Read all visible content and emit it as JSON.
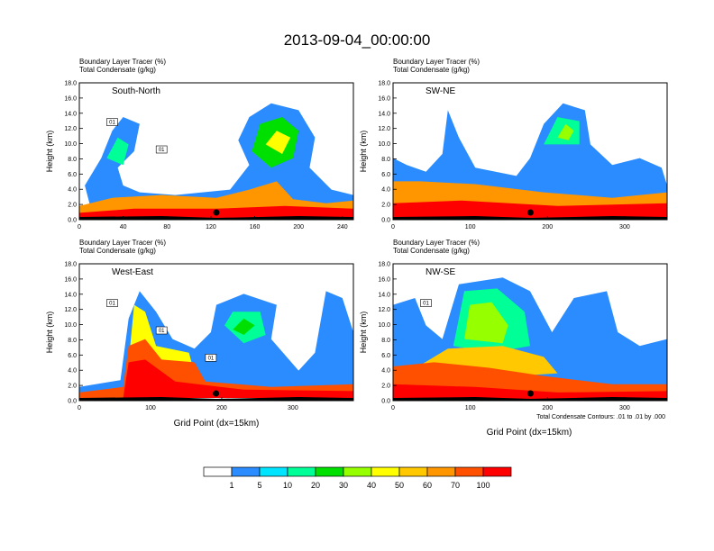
{
  "title": "2013-09-04_00:00:00",
  "panel_header_lines": [
    "Boundary Layer Tracer    (%)",
    "Total Condensate    (g/kg)"
  ],
  "y_axis_label": "Height (km)",
  "x_axis_label": "Grid Point (dx=15km)",
  "contour_note": "Total Condensate Contours: .01 to .01 by .000",
  "colorbar": {
    "colors": [
      "#ffffff",
      "#2a8cff",
      "#00e5ff",
      "#00ff96",
      "#00e000",
      "#96ff00",
      "#ffff00",
      "#ffc800",
      "#ff9600",
      "#ff5000",
      "#ff0000"
    ],
    "labels": [
      "1",
      "5",
      "10",
      "20",
      "30",
      "40",
      "50",
      "60",
      "70",
      "100"
    ]
  },
  "chart_data": [
    {
      "type": "heatmap",
      "name": "South-North",
      "ylabel": "Height (km)",
      "yticks": [
        "0.0",
        "2.0",
        "4.0",
        "6.0",
        "8.0",
        "10.0",
        "12.0",
        "14.0",
        "16.0",
        "18.0"
      ],
      "ylim": [
        0,
        18
      ],
      "xticks": [
        0,
        40,
        80,
        120,
        160,
        200,
        240
      ],
      "xlim": [
        0,
        250
      ],
      "contour_labels": [
        "01",
        "01"
      ],
      "marker_x": 125
    },
    {
      "type": "heatmap",
      "name": "SW-NE",
      "ylabel": "Height (km)",
      "yticks": [
        "0.0",
        "2.0",
        "4.0",
        "6.0",
        "8.0",
        "10.0",
        "12.0",
        "14.0",
        "16.0",
        "18.0"
      ],
      "ylim": [
        0,
        18
      ],
      "xticks": [
        0,
        100,
        200,
        300
      ],
      "xlim": [
        0,
        355
      ],
      "contour_labels": [],
      "marker_x": 178
    },
    {
      "type": "heatmap",
      "name": "West-East",
      "ylabel": "Height (km)",
      "yticks": [
        "0.0",
        "2.0",
        "4.0",
        "6.0",
        "8.0",
        "10.0",
        "12.0",
        "14.0",
        "16.0",
        "18.0"
      ],
      "ylim": [
        0,
        18
      ],
      "xticks": [
        0,
        100,
        200,
        300
      ],
      "xlim": [
        0,
        385
      ],
      "contour_labels": [
        "01",
        "01",
        "01"
      ],
      "marker_x": 192
    },
    {
      "type": "heatmap",
      "name": "NW-SE",
      "ylabel": "Height (km)",
      "yticks": [
        "0.0",
        "2.0",
        "4.0",
        "6.0",
        "8.0",
        "10.0",
        "12.0",
        "14.0",
        "16.0",
        "18.0"
      ],
      "ylim": [
        0,
        18
      ],
      "xticks": [
        0,
        100,
        200,
        300
      ],
      "xlim": [
        0,
        355
      ],
      "contour_labels": [
        "01"
      ],
      "marker_x": 178
    }
  ]
}
